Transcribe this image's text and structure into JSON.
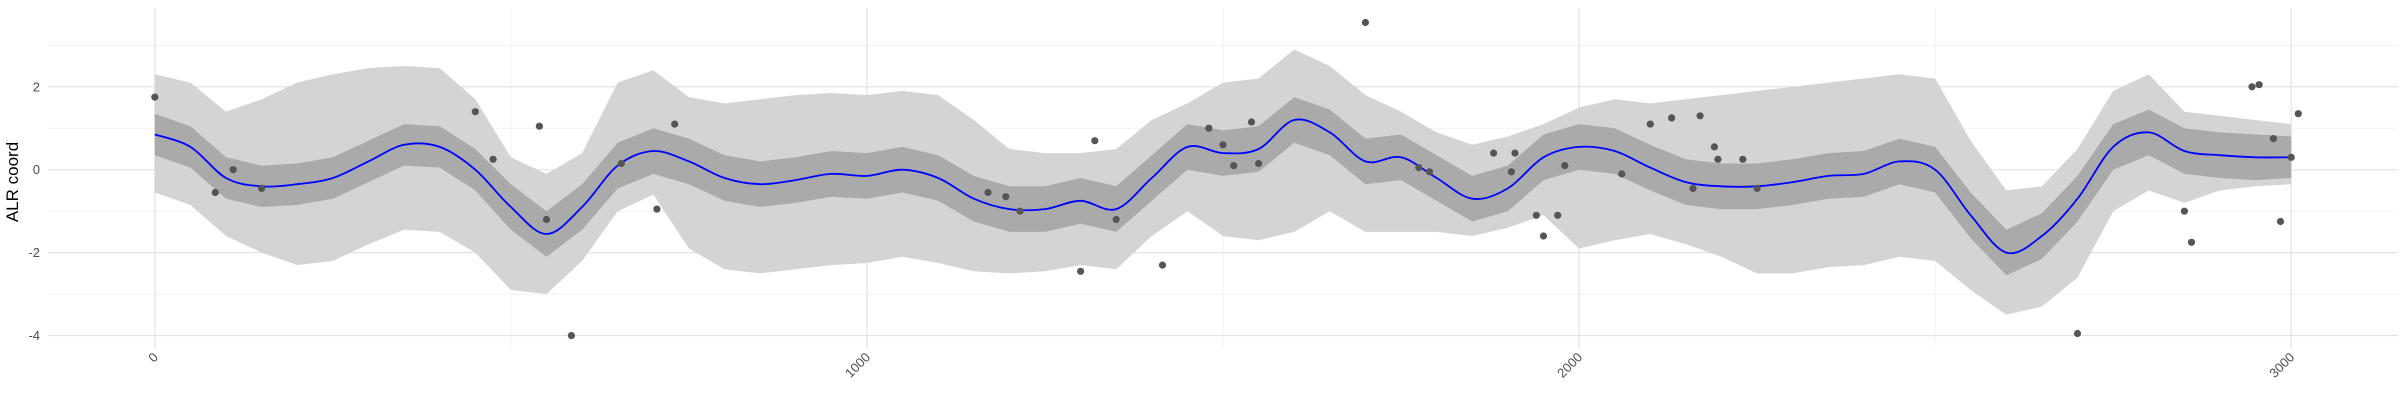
{
  "chart_data": {
    "type": "line",
    "title": "",
    "xlabel": "",
    "ylabel": "ALR coord",
    "xlim": [
      -150,
      3150
    ],
    "ylim": [
      -4.3,
      3.9
    ],
    "x_ticks": [
      0,
      1000,
      2000,
      3000
    ],
    "x_tick_labels": [
      "0",
      "1000",
      "2000",
      "3000"
    ],
    "y_ticks": [
      -4,
      -2,
      0,
      2
    ],
    "y_tick_labels": [
      "-4",
      "-2",
      "0",
      "2"
    ],
    "grid": true,
    "legend": "none",
    "series": [
      {
        "kind": "mean",
        "color": "#0000ff",
        "x": [
          0,
          50,
          100,
          150,
          200,
          250,
          300,
          350,
          400,
          450,
          500,
          550,
          600,
          650,
          700,
          750,
          800,
          850,
          900,
          950,
          1000,
          1050,
          1100,
          1150,
          1200,
          1250,
          1300,
          1350,
          1400,
          1450,
          1500,
          1550,
          1600,
          1650,
          1700,
          1750,
          1800,
          1850,
          1900,
          1950,
          2000,
          2050,
          2100,
          2150,
          2200,
          2250,
          2300,
          2350,
          2400,
          2450,
          2500,
          2550,
          2600,
          2650,
          2700,
          2750,
          2800,
          2850,
          2900,
          2950,
          3000
        ],
        "y": [
          0.85,
          0.55,
          -0.2,
          -0.4,
          -0.35,
          -0.2,
          0.2,
          0.6,
          0.55,
          0.0,
          -0.9,
          -1.55,
          -0.9,
          0.1,
          0.45,
          0.2,
          -0.2,
          -0.35,
          -0.25,
          -0.1,
          -0.15,
          0.0,
          -0.2,
          -0.7,
          -0.95,
          -0.95,
          -0.75,
          -0.95,
          -0.2,
          0.55,
          0.4,
          0.5,
          1.2,
          0.9,
          0.2,
          0.3,
          -0.2,
          -0.7,
          -0.45,
          0.3,
          0.55,
          0.45,
          0.05,
          -0.3,
          -0.4,
          -0.4,
          -0.3,
          -0.15,
          -0.1,
          0.2,
          0.0,
          -1.1,
          -2.0,
          -1.6,
          -0.7,
          0.55,
          0.9,
          0.45,
          0.35,
          0.3,
          0.3
        ]
      },
      {
        "kind": "inner-band",
        "color": "#aaaaaa",
        "x": [
          0,
          50,
          100,
          150,
          200,
          250,
          300,
          350,
          400,
          450,
          500,
          550,
          600,
          650,
          700,
          750,
          800,
          850,
          900,
          950,
          1000,
          1050,
          1100,
          1150,
          1200,
          1250,
          1300,
          1350,
          1400,
          1450,
          1500,
          1550,
          1600,
          1650,
          1700,
          1750,
          1800,
          1850,
          1900,
          1950,
          2000,
          2050,
          2100,
          2150,
          2200,
          2250,
          2300,
          2350,
          2400,
          2450,
          2500,
          2550,
          2600,
          2650,
          2700,
          2750,
          2800,
          2850,
          2900,
          2950,
          3000
        ],
        "lower": [
          0.35,
          0.05,
          -0.7,
          -0.9,
          -0.85,
          -0.7,
          -0.3,
          0.1,
          0.05,
          -0.5,
          -1.45,
          -2.1,
          -1.45,
          -0.45,
          -0.1,
          -0.35,
          -0.75,
          -0.9,
          -0.8,
          -0.65,
          -0.7,
          -0.55,
          -0.75,
          -1.25,
          -1.5,
          -1.5,
          -1.3,
          -1.5,
          -0.75,
          0.0,
          -0.15,
          -0.05,
          0.65,
          0.35,
          -0.35,
          -0.25,
          -0.75,
          -1.25,
          -1.0,
          -0.25,
          0.0,
          -0.1,
          -0.5,
          -0.85,
          -0.95,
          -0.95,
          -0.85,
          -0.7,
          -0.65,
          -0.35,
          -0.55,
          -1.65,
          -2.55,
          -2.15,
          -1.25,
          0.0,
          0.35,
          -0.1,
          -0.2,
          -0.25,
          -0.2
        ],
        "upper": [
          1.35,
          1.05,
          0.3,
          0.1,
          0.15,
          0.3,
          0.7,
          1.1,
          1.05,
          0.5,
          -0.35,
          -1.0,
          -0.35,
          0.65,
          1.0,
          0.75,
          0.35,
          0.2,
          0.3,
          0.45,
          0.4,
          0.55,
          0.35,
          -0.15,
          -0.4,
          -0.4,
          -0.2,
          -0.4,
          0.35,
          1.1,
          0.95,
          1.05,
          1.75,
          1.45,
          0.75,
          0.85,
          0.35,
          -0.15,
          0.1,
          0.85,
          1.1,
          1.0,
          0.6,
          0.25,
          0.15,
          0.15,
          0.25,
          0.4,
          0.45,
          0.75,
          0.55,
          -0.55,
          -1.45,
          -1.05,
          -0.15,
          1.1,
          1.45,
          1.0,
          0.9,
          0.85,
          0.8
        ]
      },
      {
        "kind": "outer-band",
        "color": "#d4d4d4",
        "x": [
          0,
          50,
          100,
          150,
          200,
          250,
          300,
          350,
          400,
          450,
          500,
          550,
          600,
          650,
          700,
          750,
          800,
          850,
          900,
          950,
          1000,
          1050,
          1100,
          1150,
          1200,
          1250,
          1300,
          1350,
          1400,
          1450,
          1500,
          1550,
          1600,
          1650,
          1700,
          1750,
          1800,
          1850,
          1900,
          1950,
          2000,
          2050,
          2100,
          2150,
          2200,
          2250,
          2300,
          2350,
          2400,
          2450,
          2500,
          2550,
          2600,
          2650,
          2700,
          2750,
          2800,
          2850,
          2900,
          2950,
          3000
        ],
        "lower": [
          -0.55,
          -0.85,
          -1.6,
          -2.0,
          -2.3,
          -2.2,
          -1.8,
          -1.45,
          -1.5,
          -2.0,
          -2.9,
          -3.0,
          -2.2,
          -1.0,
          -0.6,
          -1.9,
          -2.4,
          -2.5,
          -2.4,
          -2.3,
          -2.25,
          -2.1,
          -2.25,
          -2.45,
          -2.5,
          -2.45,
          -2.3,
          -2.4,
          -1.6,
          -1.0,
          -1.6,
          -1.7,
          -1.5,
          -1.0,
          -1.5,
          -1.5,
          -1.5,
          -1.6,
          -1.4,
          -1.1,
          -1.9,
          -1.7,
          -1.55,
          -1.8,
          -2.1,
          -2.5,
          -2.5,
          -2.35,
          -2.3,
          -2.1,
          -2.2,
          -2.9,
          -3.5,
          -3.3,
          -2.6,
          -1.0,
          -0.5,
          -0.8,
          -0.5,
          -0.4,
          -0.35
        ],
        "upper": [
          2.3,
          2.1,
          1.4,
          1.7,
          2.1,
          2.3,
          2.45,
          2.5,
          2.45,
          1.7,
          0.3,
          -0.1,
          0.4,
          2.1,
          2.4,
          1.75,
          1.6,
          1.7,
          1.8,
          1.85,
          1.8,
          1.9,
          1.8,
          1.2,
          0.5,
          0.4,
          0.4,
          0.5,
          1.2,
          1.6,
          2.1,
          2.2,
          2.9,
          2.5,
          1.8,
          1.4,
          0.9,
          0.6,
          0.8,
          1.1,
          1.5,
          1.7,
          1.6,
          1.7,
          1.8,
          1.9,
          2.0,
          2.1,
          2.2,
          2.3,
          2.2,
          0.7,
          -0.5,
          -0.4,
          0.5,
          1.9,
          2.3,
          1.4,
          1.3,
          1.2,
          1.1
        ]
      },
      {
        "kind": "observations",
        "color": "#555555",
        "points": [
          [
            0,
            1.75
          ],
          [
            85,
            -0.55
          ],
          [
            110,
            0.0
          ],
          [
            150,
            -0.45
          ],
          [
            450,
            1.4
          ],
          [
            475,
            0.25
          ],
          [
            540,
            1.05
          ],
          [
            550,
            -1.2
          ],
          [
            585,
            -4.0
          ],
          [
            655,
            0.15
          ],
          [
            705,
            -0.95
          ],
          [
            730,
            1.1
          ],
          [
            1170,
            -0.55
          ],
          [
            1195,
            -0.65
          ],
          [
            1215,
            -1.0
          ],
          [
            1300,
            -2.45
          ],
          [
            1320,
            0.7
          ],
          [
            1350,
            -1.2
          ],
          [
            1415,
            -2.3
          ],
          [
            1480,
            1.0
          ],
          [
            1500,
            0.6
          ],
          [
            1515,
            0.1
          ],
          [
            1540,
            1.15
          ],
          [
            1550,
            0.15
          ],
          [
            1700,
            3.55
          ],
          [
            1775,
            0.05
          ],
          [
            1790,
            -0.05
          ],
          [
            1880,
            0.4
          ],
          [
            1905,
            -0.05
          ],
          [
            1910,
            0.4
          ],
          [
            1940,
            -1.1
          ],
          [
            1950,
            -1.6
          ],
          [
            1970,
            -1.1
          ],
          [
            1980,
            0.1
          ],
          [
            2060,
            -0.1
          ],
          [
            2100,
            1.1
          ],
          [
            2130,
            1.25
          ],
          [
            2160,
            -0.45
          ],
          [
            2170,
            1.3
          ],
          [
            2190,
            0.55
          ],
          [
            2195,
            0.25
          ],
          [
            2230,
            0.25
          ],
          [
            2250,
            -0.45
          ],
          [
            2700,
            -3.95
          ],
          [
            2850,
            -1.0
          ],
          [
            2860,
            -1.75
          ],
          [
            2945,
            2.0
          ],
          [
            2955,
            2.05
          ],
          [
            2975,
            0.75
          ],
          [
            2985,
            -1.25
          ],
          [
            3000,
            0.3
          ],
          [
            3010,
            1.35
          ]
        ]
      }
    ]
  }
}
